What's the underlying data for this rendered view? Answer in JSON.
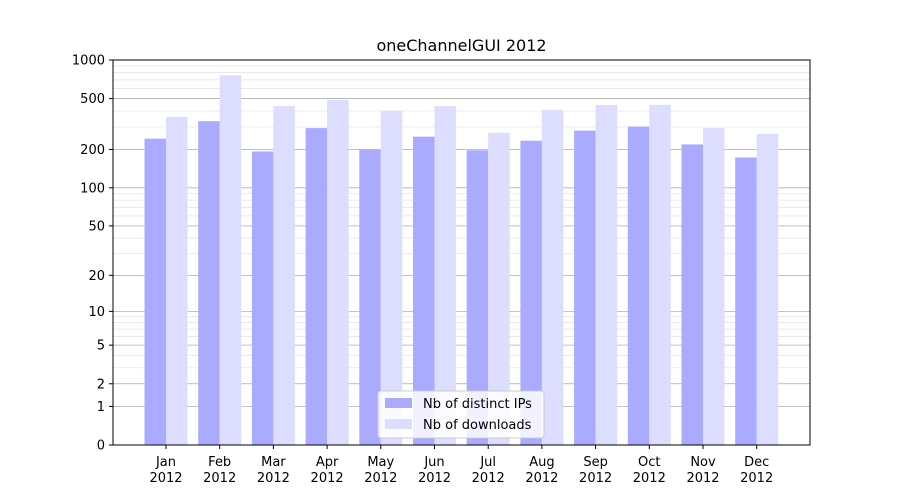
{
  "chart_data": {
    "type": "bar",
    "title": "oneChannelGUI 2012",
    "xlabel": "",
    "ylabel": "",
    "y_scale": "log(1+y)",
    "ylim": [
      0,
      1000
    ],
    "grid": true,
    "legend_position": "bottom-center",
    "y_ticks": [
      {
        "value": 0,
        "label": "0"
      },
      {
        "value": 1,
        "label": "1"
      },
      {
        "value": 2,
        "label": "2"
      },
      {
        "value": 5,
        "label": "5"
      },
      {
        "value": 10,
        "label": "10"
      },
      {
        "value": 20,
        "label": "20"
      },
      {
        "value": 50,
        "label": "50"
      },
      {
        "value": 100,
        "label": "100"
      },
      {
        "value": 200,
        "label": "200"
      },
      {
        "value": 500,
        "label": "500"
      },
      {
        "value": 1000,
        "label": "1000"
      }
    ],
    "categories": [
      {
        "month": "Jan",
        "year": "2012"
      },
      {
        "month": "Feb",
        "year": "2012"
      },
      {
        "month": "Mar",
        "year": "2012"
      },
      {
        "month": "Apr",
        "year": "2012"
      },
      {
        "month": "May",
        "year": "2012"
      },
      {
        "month": "Jun",
        "year": "2012"
      },
      {
        "month": "Jul",
        "year": "2012"
      },
      {
        "month": "Aug",
        "year": "2012"
      },
      {
        "month": "Sep",
        "year": "2012"
      },
      {
        "month": "Oct",
        "year": "2012"
      },
      {
        "month": "Nov",
        "year": "2012"
      },
      {
        "month": "Dec",
        "year": "2012"
      }
    ],
    "series": [
      {
        "name": "Nb of distinct IPs",
        "color": "#aaaaff",
        "values": [
          243,
          333,
          193,
          294,
          200,
          252,
          197,
          234,
          281,
          302,
          219,
          173
        ]
      },
      {
        "name": "Nb of downloads",
        "color": "#ddddff",
        "values": [
          360,
          760,
          437,
          487,
          400,
          437,
          270,
          409,
          446,
          446,
          294,
          265
        ]
      }
    ]
  }
}
